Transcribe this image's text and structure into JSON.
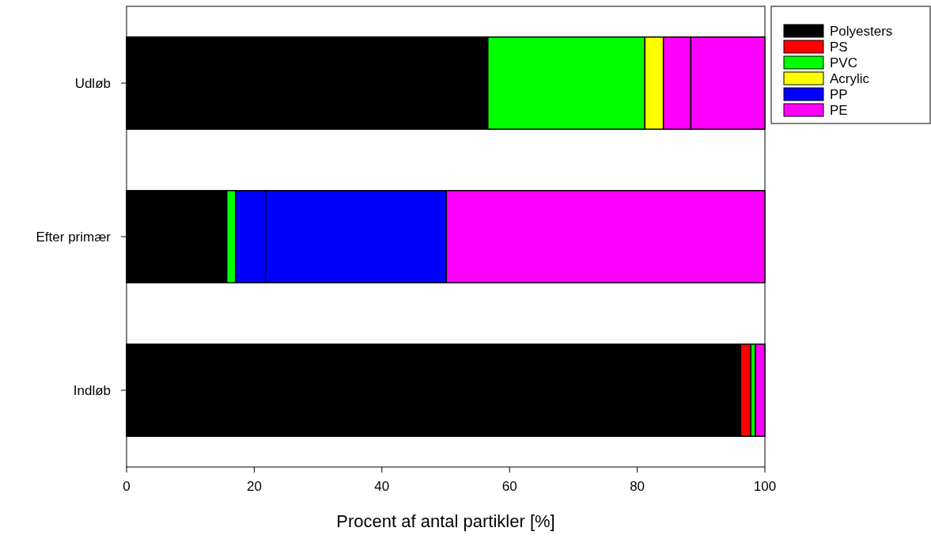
{
  "chart_data": {
    "type": "bar",
    "orientation": "horizontal",
    "stacked": true,
    "xlabel": "Procent af antal partikler [%]",
    "categories": [
      "Udløb",
      "Efter primær",
      "Indløb"
    ],
    "xlim": [
      0,
      100
    ],
    "xticks": [
      0,
      20,
      40,
      60,
      80,
      100
    ],
    "legend": "top right",
    "grid": false,
    "series": [
      {
        "name": "Polyesters",
        "color": "#000000",
        "values": [
          56.6,
          15.7,
          96.2
        ]
      },
      {
        "name": "PS",
        "color": "#ff0000",
        "values": [
          0,
          0,
          1.6
        ]
      },
      {
        "name": "PVC",
        "color": "#00ff00",
        "values": [
          24.6,
          1.4,
          0.7
        ]
      },
      {
        "name": "Acrylic",
        "color": "#ffff00",
        "values": [
          2.9,
          0,
          0
        ]
      },
      {
        "name": "PP",
        "color": "#0000ff",
        "values": [
          0,
          4.7,
          0
        ]
      },
      {
        "color": "#0000ff",
        "values": [
          0,
          28.3,
          0
        ]
      },
      {
        "name": "PE",
        "color": "#ff00ff",
        "values": [
          4.3,
          49.9,
          1.5
        ]
      },
      {
        "color": "#ff00ff",
        "values": [
          11.6,
          0,
          0
        ]
      }
    ]
  }
}
